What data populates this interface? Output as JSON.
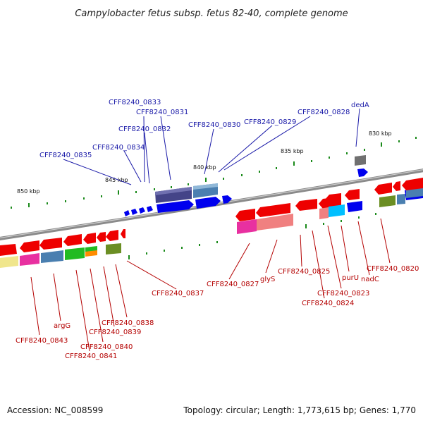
{
  "title": "Campylobacter fetus subsp. fetus 82-40, complete genome",
  "footer": {
    "accession": "Accession: NC_008599",
    "summary": "Topology: circular; Length: 1,773,615 bp; Genes: 1,770"
  },
  "scale": {
    "kbp_labels": [
      "830 kbp",
      "835 kbp",
      "840 kbp",
      "845 kbp",
      "850 kbp"
    ]
  },
  "labels": {
    "top": [
      "CFF8240_0833",
      "CFF8240_0831",
      "CFF8240_0832",
      "CFF8240_0830",
      "CFF8240_0829",
      "CFF8240_0828",
      "dedA",
      "CFF8240_0834",
      "CFF8240_0835"
    ],
    "bottom": [
      "CFF8240_0837",
      "CFF8240_0827",
      "glyS",
      "CFF8240_0825",
      "CFF8240_0823",
      "CFF8240_0824",
      "purU",
      "nadC",
      "CFF8240_0820",
      "argG",
      "CFF8240_0838",
      "CFF8240_0839",
      "CFF8240_0840",
      "CFF8240_0841",
      "CFF8240_0843"
    ]
  },
  "colors": {
    "forward_gene": "#0000ee",
    "reverse_gene": "#ee0000",
    "backbone": "#8a8a8a",
    "tick": "#1a8a1a",
    "top_label": "#1a1aa8",
    "bottom_label": "#b40000"
  }
}
